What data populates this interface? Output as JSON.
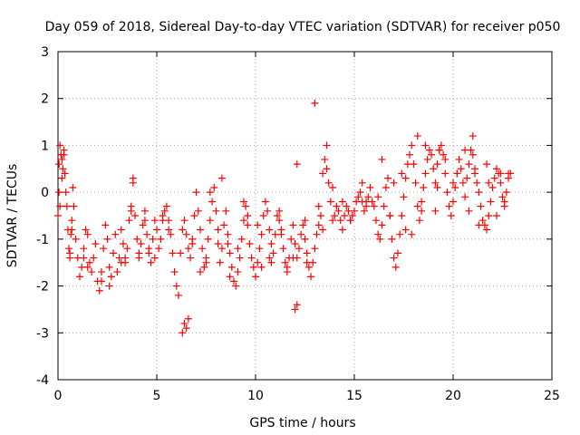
{
  "chart_data": {
    "type": "scatter",
    "title": "Day 059 of 2018, Sidereal Day-to-day VTEC variation (SDTVAR) for receiver p050",
    "xlabel": "GPS time / hours",
    "ylabel": "SDTVAR / TECUs",
    "xlim": [
      0,
      25
    ],
    "ylim": [
      -4,
      3
    ],
    "xticks": [
      0,
      5,
      10,
      15,
      20,
      25
    ],
    "yticks": [
      -4,
      -3,
      -2,
      -1,
      0,
      1,
      2,
      3
    ],
    "grid": true,
    "marker": "+",
    "marker_color": "#ff0000",
    "series": [
      {
        "name": "SDTVAR",
        "x": [
          0.0,
          0.05,
          0.1,
          0.15,
          0.2,
          0.25,
          0.3,
          0.35,
          0.4,
          0.45,
          0.5,
          0.55,
          0.6,
          0.65,
          0.7,
          0.75,
          0.8,
          0.9,
          1.0,
          1.1,
          1.2,
          1.3,
          1.4,
          1.5,
          1.6,
          1.7,
          1.8,
          1.9,
          2.0,
          2.1,
          2.2,
          2.3,
          2.4,
          2.5,
          2.6,
          2.7,
          2.8,
          2.9,
          3.0,
          3.1,
          3.2,
          3.3,
          3.4,
          3.5,
          3.6,
          3.7,
          3.8,
          3.9,
          4.0,
          4.1,
          4.2,
          4.3,
          4.4,
          4.5,
          4.6,
          4.7,
          4.8,
          4.9,
          5.0,
          5.1,
          5.2,
          5.3,
          5.4,
          5.5,
          5.6,
          5.7,
          5.8,
          5.9,
          6.0,
          6.1,
          6.2,
          6.3,
          6.4,
          6.5,
          6.6,
          6.7,
          6.8,
          6.9,
          7.0,
          7.1,
          7.2,
          7.3,
          7.4,
          7.5,
          7.6,
          7.7,
          7.8,
          7.9,
          8.0,
          8.1,
          8.2,
          8.3,
          8.4,
          8.5,
          8.6,
          8.7,
          8.8,
          8.9,
          9.0,
          9.1,
          9.2,
          9.3,
          9.4,
          9.5,
          9.6,
          9.7,
          9.8,
          9.9,
          10.0,
          10.1,
          10.2,
          10.3,
          10.4,
          10.5,
          10.6,
          10.7,
          10.8,
          10.9,
          11.0,
          11.1,
          11.2,
          11.3,
          11.4,
          11.5,
          11.6,
          11.7,
          11.8,
          11.9,
          12.0,
          12.1,
          12.2,
          12.3,
          12.4,
          12.5,
          12.6,
          12.7,
          12.8,
          12.9,
          13.0,
          13.1,
          13.2,
          13.3,
          13.4,
          13.5,
          13.6,
          13.7,
          13.8,
          13.9,
          14.0,
          14.1,
          14.2,
          14.3,
          14.4,
          14.5,
          14.6,
          14.7,
          14.8,
          14.9,
          15.0,
          15.1,
          15.2,
          15.3,
          15.4,
          15.5,
          15.6,
          15.7,
          15.8,
          15.9,
          16.0,
          16.1,
          16.2,
          16.3,
          16.4,
          16.5,
          16.6,
          16.7,
          16.8,
          16.9,
          17.0,
          17.1,
          17.2,
          17.3,
          17.4,
          17.5,
          17.6,
          17.7,
          17.8,
          17.9,
          18.0,
          18.1,
          18.2,
          18.3,
          18.4,
          18.5,
          18.6,
          18.7,
          18.8,
          18.9,
          19.0,
          19.1,
          19.2,
          19.3,
          19.4,
          19.5,
          19.6,
          19.7,
          19.8,
          19.9,
          20.0,
          20.1,
          20.2,
          20.3,
          20.4,
          20.5,
          20.6,
          20.7,
          20.8,
          20.9,
          21.0,
          21.1,
          21.2,
          21.3,
          21.4,
          21.5,
          21.6,
          21.7,
          21.8,
          21.9,
          22.0,
          22.1,
          22.2,
          22.3,
          22.4,
          22.5,
          22.6,
          22.7,
          22.8,
          22.9,
          0.05,
          0.2,
          0.35,
          0.6,
          1.3,
          2.2,
          3.4,
          3.8,
          4.6,
          5.3,
          6.3,
          6.4,
          6.5,
          6.6,
          7.5,
          8.3,
          8.7,
          9.4,
          10.1,
          10.7,
          11.3,
          11.9,
          12.1,
          12.5,
          13.2,
          13.6,
          14.8,
          15.6,
          16.4,
          17.0,
          17.6,
          18.2,
          18.4,
          19.1,
          19.3,
          20.2,
          20.8,
          21.0,
          21.3,
          21.8,
          22.4,
          22.6,
          0.1,
          0.3,
          0.7,
          1.5,
          2.6,
          3.2,
          3.7,
          4.1,
          4.4,
          4.9,
          5.6,
          6.8,
          7.2,
          7.7,
          8.1,
          8.6,
          9.1,
          9.6,
          10.3,
          10.8,
          11.2,
          11.6,
          12.6,
          13.4,
          13.9,
          14.4,
          15.4,
          16.2,
          16.8,
          17.4,
          17.9,
          18.6,
          19.2,
          19.6,
          20.0,
          20.6,
          21.1,
          21.7,
          22.2,
          22.8,
          12.0,
          12.1,
          13.0
        ],
        "y": [
          -0.5,
          0.6,
          1.0,
          0.8,
          0.3,
          0.5,
          0.9,
          0.4,
          0.0,
          -0.3,
          -0.8,
          -1.2,
          -1.4,
          -0.9,
          -0.6,
          0.1,
          -0.3,
          -1.0,
          -1.4,
          -1.8,
          -1.6,
          -1.2,
          -0.8,
          -0.9,
          -1.5,
          -1.7,
          -1.4,
          -1.1,
          -1.9,
          -2.1,
          -1.7,
          -1.2,
          -0.7,
          -1.0,
          -1.6,
          -1.8,
          -1.3,
          -0.9,
          -1.7,
          -1.4,
          -0.8,
          -1.1,
          -1.5,
          -1.2,
          -0.6,
          -0.3,
          0.2,
          -0.5,
          -1.0,
          -1.4,
          -1.1,
          -0.7,
          -0.4,
          -0.9,
          -1.3,
          -1.5,
          -1.0,
          -0.6,
          -0.8,
          -1.2,
          -1.0,
          -0.6,
          -0.4,
          -0.3,
          -0.6,
          -0.9,
          -1.3,
          -1.7,
          -2.0,
          -2.2,
          -1.3,
          -0.8,
          -0.6,
          -0.9,
          -1.2,
          -1.4,
          -1.1,
          -0.5,
          0.0,
          -0.4,
          -0.8,
          -1.2,
          -1.6,
          -1.5,
          -1.0,
          -0.6,
          -0.2,
          0.1,
          -0.4,
          -1.1,
          -1.5,
          -1.2,
          -0.7,
          -0.4,
          -0.9,
          -1.3,
          -1.6,
          -1.9,
          -2.0,
          -1.7,
          -1.4,
          -1.0,
          -0.6,
          -0.3,
          -0.7,
          -1.1,
          -1.4,
          -1.6,
          -1.8,
          -1.5,
          -1.2,
          -0.9,
          -0.5,
          -0.2,
          -0.4,
          -0.8,
          -1.1,
          -1.3,
          -0.9,
          -0.5,
          -0.4,
          -0.8,
          -1.2,
          -1.5,
          -1.7,
          -1.4,
          -1.0,
          -0.7,
          -1.1,
          -1.4,
          -1.2,
          -0.9,
          -0.7,
          -1.0,
          -1.3,
          -1.6,
          -1.8,
          -1.5,
          -1.2,
          -0.9,
          -0.7,
          -0.5,
          0.4,
          0.7,
          0.5,
          0.2,
          -0.2,
          -0.6,
          -0.5,
          -0.3,
          -0.4,
          -0.6,
          -0.8,
          -0.5,
          -0.3,
          -0.4,
          -0.6,
          -0.5,
          -0.4,
          -0.2,
          -0.1,
          0.0,
          -0.2,
          -0.4,
          -0.3,
          -0.1,
          0.1,
          -0.2,
          -0.3,
          -0.6,
          -0.9,
          -1.0,
          -0.7,
          -0.3,
          0.1,
          0.3,
          -0.5,
          -1.0,
          -1.4,
          -1.6,
          -1.3,
          -0.9,
          -0.5,
          -0.1,
          0.3,
          0.6,
          0.8,
          1.0,
          0.6,
          0.2,
          -0.3,
          -0.6,
          -0.2,
          0.1,
          0.4,
          0.7,
          0.9,
          0.8,
          0.5,
          0.2,
          0.6,
          0.9,
          1.0,
          0.8,
          0.4,
          0.0,
          -0.3,
          -0.5,
          -0.2,
          0.1,
          0.4,
          0.7,
          0.5,
          0.2,
          -0.1,
          0.3,
          0.6,
          0.9,
          0.8,
          0.5,
          0.2,
          0.0,
          -0.3,
          -0.6,
          -0.7,
          -0.8,
          -0.5,
          -0.2,
          0.1,
          0.3,
          0.5,
          0.4,
          0.2,
          -0.1,
          -0.3,
          0.0,
          0.3,
          0.4,
          0.0,
          0.7,
          0.4,
          -1.3,
          -1.4,
          -1.9,
          -1.4,
          0.3,
          -1.2,
          -0.5,
          -3.0,
          -2.8,
          -2.9,
          -2.7,
          -1.4,
          0.3,
          -1.8,
          -0.2,
          -0.7,
          -1.4,
          -0.9,
          -1.4,
          0.6,
          -0.6,
          -0.3,
          1.0,
          -0.6,
          -0.2,
          0.7,
          0.2,
          -0.8,
          1.2,
          -0.4,
          -0.4,
          0.9,
          0.4,
          -0.4,
          1.2,
          -0.7,
          0.2,
          0.4,
          -0.2,
          -0.3,
          0.8,
          -0.8,
          -1.6,
          -2.0,
          -1.5,
          -0.4,
          -1.3,
          -0.6,
          -1.4,
          -0.8,
          -1.0,
          -1.7,
          0.0,
          -0.8,
          -1.1,
          -1.2,
          -0.5,
          -1.6,
          -1.5,
          -0.6,
          -1.6,
          -1.5,
          -0.8,
          0.1,
          -0.2,
          0.2,
          -0.1,
          -0.5,
          0.4,
          -0.9,
          1.0,
          0.1,
          0.7,
          0.2,
          0.9,
          0.4,
          0.6,
          -0.5,
          0.4,
          -2.5,
          -2.4,
          1.9
        ]
      }
    ]
  }
}
